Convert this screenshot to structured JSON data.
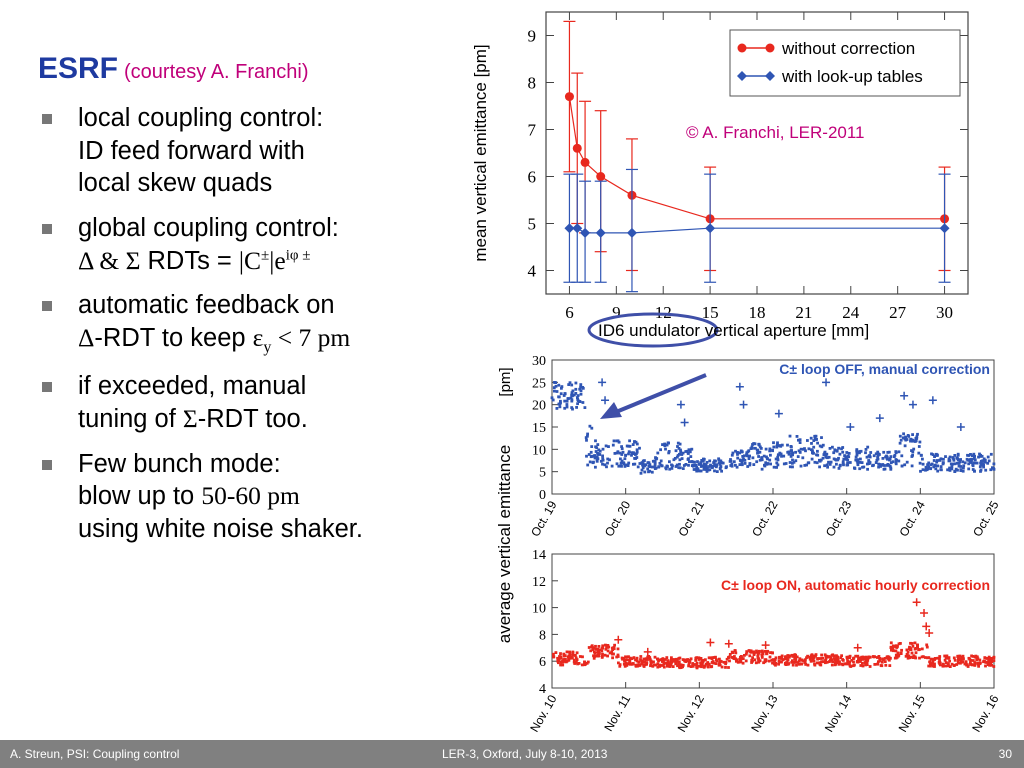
{
  "header": {
    "title": "ESRF",
    "courtesy": "(courtesy A. Franchi)"
  },
  "bullets": [
    {
      "lines": [
        "local coupling control:",
        "ID feed forward with",
        "local skew quads"
      ]
    },
    {
      "line1": "global coupling control:",
      "line2_a": "Δ & Σ",
      "line2_b": " RDTs = ",
      "line2_c": "|C",
      "line2_sup": "±",
      "line2_d": "|e",
      "line2_sup2": "iφ ±"
    },
    {
      "line1": "automatic feedback on",
      "line2_a": "Δ",
      "line2_b": "-RDT to keep ",
      "line2_eps": "ε",
      "line2_sub": "y",
      "line2_c": " < 7 pm"
    },
    {
      "line1": "if exceeded, manual",
      "line2_a": "tuning of ",
      "line2_b": "Σ",
      "line2_c": "-RDT too."
    },
    {
      "line1": "Few bunch mode:",
      "line2_a": "blow up to ",
      "line2_b": "50-60 pm",
      "line3": "using white noise shaker."
    }
  ],
  "footer": {
    "left": "A. Streun, PSI: Coupling control",
    "center": "LER-3, Oxford, July 8-10, 2013",
    "page": "30"
  },
  "chart_data": [
    {
      "type": "line",
      "ylabel": "mean vertical emittance [pm]",
      "xlabel": "ID6 undulator vertical aperture [mm]",
      "annotation": "© A. Franchi, LER-2011",
      "xticks": [
        "6",
        "9",
        "12",
        "15",
        "18",
        "21",
        "24",
        "27",
        "30"
      ],
      "yticks": [
        "4",
        "5",
        "6",
        "7",
        "8",
        "9"
      ],
      "xlim": [
        4.5,
        31.5
      ],
      "ylim": [
        3.5,
        9.5
      ],
      "legend_position": "top-right",
      "series": [
        {
          "name": "without correction",
          "color": "#e8281e",
          "marker": "circle",
          "x": [
            6,
            6.5,
            7,
            8,
            10,
            15,
            30
          ],
          "y": [
            7.7,
            6.6,
            6.3,
            6.0,
            5.6,
            5.1,
            5.1
          ],
          "err_low": [
            6.1,
            5.0,
            4.8,
            4.4,
            4.0,
            4.0,
            4.0
          ],
          "err_high": [
            9.3,
            8.2,
            7.6,
            7.4,
            6.8,
            6.2,
            6.2
          ]
        },
        {
          "name": "with look-up tables",
          "color": "#2f55b4",
          "marker": "diamond",
          "x": [
            6,
            6.5,
            7,
            8,
            10,
            15,
            30
          ],
          "y": [
            4.9,
            4.9,
            4.8,
            4.8,
            4.8,
            4.9,
            4.9
          ],
          "err_low": [
            3.75,
            3.75,
            3.75,
            3.75,
            3.55,
            3.75,
            3.75
          ],
          "err_high": [
            6.05,
            6.05,
            5.9,
            5.9,
            6.15,
            6.05,
            6.05
          ]
        }
      ]
    },
    {
      "type": "scatter",
      "ylabel": "average vertical emittance",
      "ylabel_unit": "[pm]",
      "annotation": "C± loop OFF, manual correction",
      "color": "#2f55b4",
      "xticks": [
        "Oct. 19",
        "Oct. 20",
        "Oct. 21",
        "Oct. 22",
        "Oct. 23",
        "Oct. 24",
        "Oct. 25"
      ],
      "yticks": [
        "0",
        "5",
        "10",
        "15",
        "20",
        "25",
        "30"
      ],
      "ylim": [
        0,
        30
      ],
      "x_days": [
        0,
        6
      ],
      "segments": [
        {
          "x": [
            0.0,
            0.45
          ],
          "level": 22,
          "noise": 3
        },
        {
          "x": [
            0.45,
            0.55
          ],
          "level": 11,
          "noise": 5
        },
        {
          "x": [
            0.55,
            1.2
          ],
          "level": 9,
          "noise": 3
        },
        {
          "x": [
            1.2,
            1.4
          ],
          "level": 6,
          "noise": 1.5
        },
        {
          "x": [
            1.4,
            1.9
          ],
          "level": 8.5,
          "noise": 3
        },
        {
          "x": [
            1.9,
            2.4
          ],
          "level": 6.5,
          "noise": 1.5
        },
        {
          "x": [
            2.4,
            2.7
          ],
          "level": 8,
          "noise": 2
        },
        {
          "x": [
            2.7,
            3.2
          ],
          "level": 8.5,
          "noise": 3
        },
        {
          "x": [
            3.2,
            3.7
          ],
          "level": 9.5,
          "noise": 3.5
        },
        {
          "x": [
            3.7,
            4.3
          ],
          "level": 8,
          "noise": 2.5
        },
        {
          "x": [
            4.3,
            4.7
          ],
          "level": 7.5,
          "noise": 2
        },
        {
          "x": [
            4.7,
            5.0
          ],
          "level": 10,
          "noise": 4
        },
        {
          "x": [
            5.0,
            6.0
          ],
          "level": 7,
          "noise": 2
        }
      ],
      "outliers": [
        {
          "x": 0.68,
          "y": 25
        },
        {
          "x": 0.72,
          "y": 21
        },
        {
          "x": 1.75,
          "y": 20
        },
        {
          "x": 1.8,
          "y": 16
        },
        {
          "x": 2.55,
          "y": 24
        },
        {
          "x": 2.6,
          "y": 20
        },
        {
          "x": 3.08,
          "y": 18
        },
        {
          "x": 3.72,
          "y": 25
        },
        {
          "x": 4.05,
          "y": 15
        },
        {
          "x": 4.45,
          "y": 17
        },
        {
          "x": 4.78,
          "y": 22
        },
        {
          "x": 4.9,
          "y": 20
        },
        {
          "x": 5.17,
          "y": 21
        },
        {
          "x": 5.55,
          "y": 15
        }
      ]
    },
    {
      "type": "scatter",
      "annotation": "C± loop ON, automatic hourly correction",
      "color": "#e8281e",
      "xticks": [
        "Nov. 10",
        "Nov. 11",
        "Nov. 12",
        "Nov. 13",
        "Nov. 14",
        "Nov. 15",
        "Nov. 16"
      ],
      "yticks": [
        "4",
        "6",
        "8",
        "10",
        "12",
        "14"
      ],
      "ylim": [
        4,
        14
      ],
      "x_days": [
        0,
        6
      ],
      "segments": [
        {
          "x": [
            0.0,
            0.5
          ],
          "level": 6.2,
          "noise": 0.5
        },
        {
          "x": [
            0.5,
            0.9
          ],
          "level": 6.7,
          "noise": 0.5
        },
        {
          "x": [
            0.9,
            1.4
          ],
          "level": 6.0,
          "noise": 0.4
        },
        {
          "x": [
            1.4,
            2.4
          ],
          "level": 5.9,
          "noise": 0.4
        },
        {
          "x": [
            2.4,
            3.0
          ],
          "level": 6.3,
          "noise": 0.5
        },
        {
          "x": [
            3.0,
            4.0
          ],
          "level": 6.1,
          "noise": 0.4
        },
        {
          "x": [
            4.0,
            4.6
          ],
          "level": 6.0,
          "noise": 0.4
        },
        {
          "x": [
            4.6,
            5.1
          ],
          "level": 6.8,
          "noise": 0.6
        },
        {
          "x": [
            5.1,
            6.0
          ],
          "level": 6.0,
          "noise": 0.4
        }
      ],
      "outliers": [
        {
          "x": 0.9,
          "y": 7.6
        },
        {
          "x": 1.3,
          "y": 6.7
        },
        {
          "x": 2.15,
          "y": 7.4
        },
        {
          "x": 2.4,
          "y": 7.3
        },
        {
          "x": 2.9,
          "y": 7.2
        },
        {
          "x": 4.15,
          "y": 7.0
        },
        {
          "x": 4.95,
          "y": 10.4
        },
        {
          "x": 5.05,
          "y": 9.6
        },
        {
          "x": 5.08,
          "y": 8.6
        },
        {
          "x": 5.12,
          "y": 8.1
        }
      ]
    }
  ]
}
